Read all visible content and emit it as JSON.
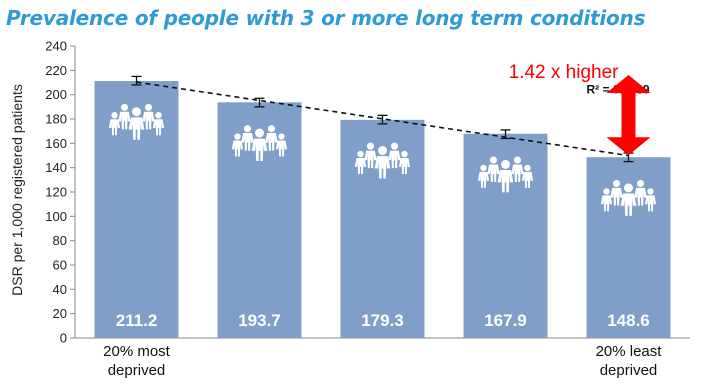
{
  "title": "Prevalence of people with 3 or more long term conditions",
  "chart_data": {
    "type": "bar",
    "categories": [
      "20% most deprived",
      "",
      "",
      "",
      "20% least deprived"
    ],
    "category_label_lines": [
      [
        "20% most",
        "deprived"
      ],
      [],
      [],
      [],
      [
        "20% least",
        "deprived"
      ]
    ],
    "values": [
      211.2,
      193.7,
      179.3,
      167.9,
      148.6
    ],
    "value_labels": [
      "211.2",
      "193.7",
      "179.3",
      "167.9",
      "148.6"
    ],
    "error_bars": [
      [
        208,
        215
      ],
      [
        190,
        197
      ],
      [
        176,
        183
      ],
      [
        164,
        171
      ],
      [
        145,
        152
      ]
    ],
    "trendline": {
      "type": "linear",
      "style": "dashed",
      "r2_label": "R² = 0.9939"
    },
    "annotation": "1.42 x higher",
    "ylabel": "DSR per 1,000 registered patients",
    "xlabel": "",
    "ylim": [
      0,
      240
    ],
    "yticks": [
      0,
      20,
      40,
      60,
      80,
      100,
      120,
      140,
      160,
      180,
      200,
      220,
      240
    ],
    "grid": false,
    "legend": "none",
    "colors": {
      "bar": "#7f9fc9",
      "trend": "#111111",
      "arrow": "#ff0000",
      "title": "#2e9bd6"
    },
    "bar_icon": "group-of-people-icon"
  }
}
